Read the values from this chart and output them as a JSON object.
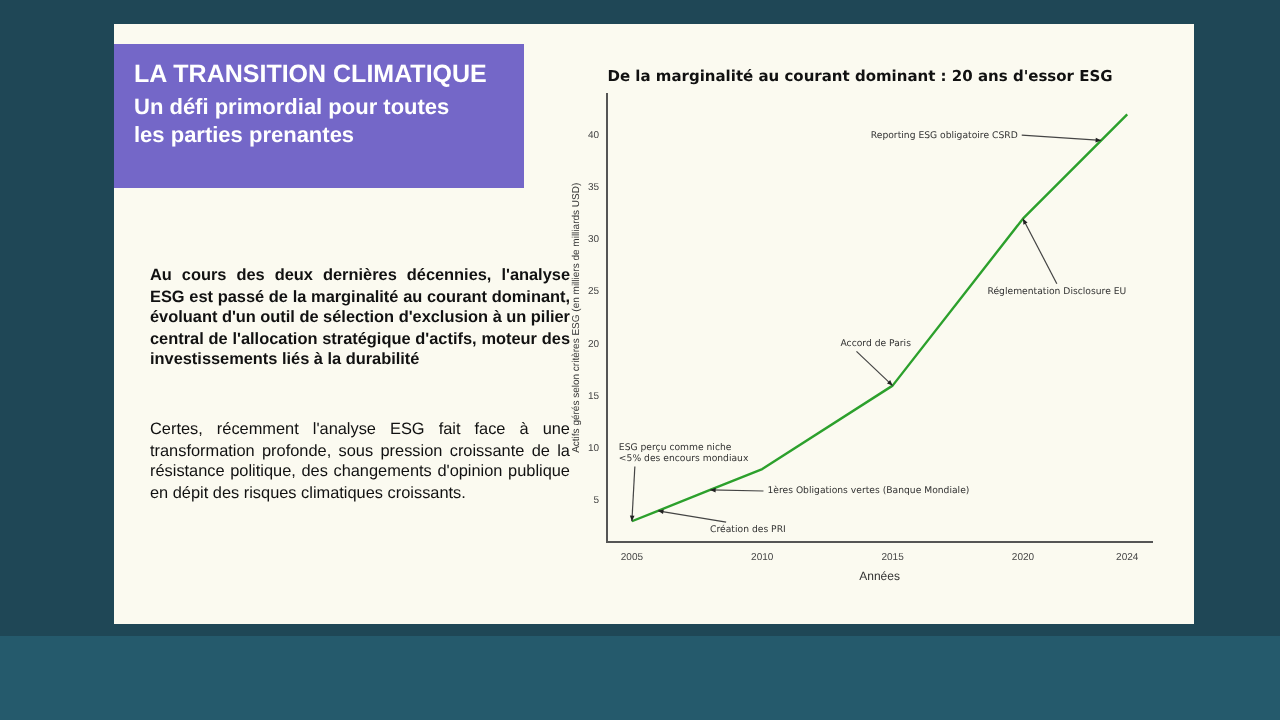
{
  "chart_data": {
    "type": "line",
    "title": "De la marginalité au courant dominant : 20 ans d'essor ESG",
    "xlabel": "Années",
    "ylabel": "Actifs gérés selon critères ESG (en milliers de milliards USD)",
    "x": [
      2005,
      2006,
      2008,
      2010,
      2015,
      2020,
      2024
    ],
    "series": [
      {
        "color": "#2ca02c",
        "values": [
          3,
          4,
          6,
          8,
          16,
          32,
          42
        ]
      }
    ],
    "xlim": [
      2004.05,
      2024.95
    ],
    "xticks": [
      2005,
      2010,
      2015,
      2020,
      2024
    ],
    "ylim": [
      1.05,
      43.95
    ],
    "yticks": [
      5,
      10,
      15,
      20,
      25,
      30,
      35,
      40
    ],
    "grid": false,
    "legend": false,
    "marker": "none",
    "line_style": "solid",
    "annotations": [
      "LA TRANSITION CLIMATIQUE",
      "Un défi primordial pour toutes les parties prenantes",
      "Au cours des deux dernières décennies, l'analyse ESG est passé de la marginalité au courant dominant, évoluant d'un outil de sélection d'exclusion à un pilier central de l'allocation stratégique d'actifs, moteur des investissements liés à la durabilité",
      "Certes, récemment l'analyse ESG fait face à une transformation profonde, sous pression croissante de la résistance politique, des changements d'opinion publique en dépit des risques climatiques croissants.",
      {
        "text": "ESG perçu comme niche\n<5% des encours mondiaux",
        "x": 2005,
        "y": 3
      },
      {
        "text": "Création des PRI",
        "x": 2006,
        "y": 4
      },
      {
        "text": "1ères Obligations vertes (Banque Mondiale)",
        "x": 2008,
        "y": 6
      },
      {
        "text": "Accord de Paris",
        "x": 2015,
        "y": 16
      },
      {
        "text": "Réglementation Disclosure EU",
        "x": 2020,
        "y": 32
      },
      {
        "text": "Reporting ESG obligatoire CSRD",
        "x": 2023,
        "y": 39.5
      }
    ]
  }
}
